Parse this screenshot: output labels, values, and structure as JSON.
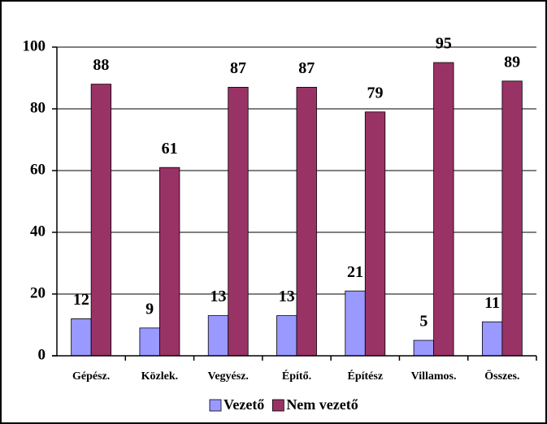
{
  "chart_data": {
    "type": "bar",
    "categories": [
      "Gépész.",
      "Közlek.",
      "Vegyész.",
      "Építő.",
      "Építész",
      "Villamos.",
      "Összes."
    ],
    "series": [
      {
        "name": "Vezető",
        "color": "#9999ff",
        "values": [
          12,
          9,
          13,
          13,
          21,
          5,
          11
        ]
      },
      {
        "name": "Nem vezető",
        "color": "#993366",
        "values": [
          88,
          61,
          87,
          87,
          79,
          95,
          89
        ]
      }
    ],
    "ylim": [
      0,
      100
    ],
    "yticks": [
      0,
      20,
      40,
      60,
      80,
      100
    ],
    "grid": true,
    "legend": "bottom"
  }
}
